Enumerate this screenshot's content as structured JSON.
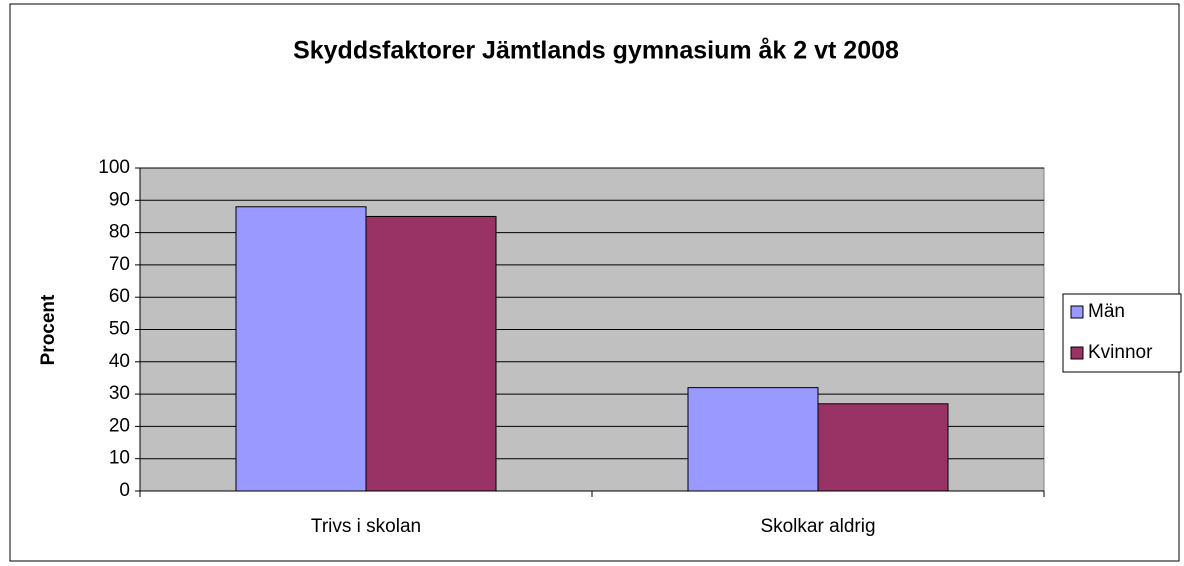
{
  "chart_data": {
    "type": "bar",
    "title": "Skyddsfaktorer Jämtlands gymnasium åk 2 vt 2008",
    "ylabel": "Procent",
    "categories": [
      "Trivs i skolan",
      "Skolkar aldrig"
    ],
    "series": [
      {
        "name": "Män",
        "color": "#9999ff",
        "values": [
          88,
          32
        ]
      },
      {
        "name": "Kvinnor",
        "color": "#993366",
        "values": [
          85,
          27
        ]
      }
    ],
    "ylim": [
      0,
      100
    ],
    "yticks": [
      0,
      10,
      20,
      30,
      40,
      50,
      60,
      70,
      80,
      90,
      100
    ],
    "grid": true,
    "legend": "right",
    "plot_background": "#c0c0c0"
  }
}
